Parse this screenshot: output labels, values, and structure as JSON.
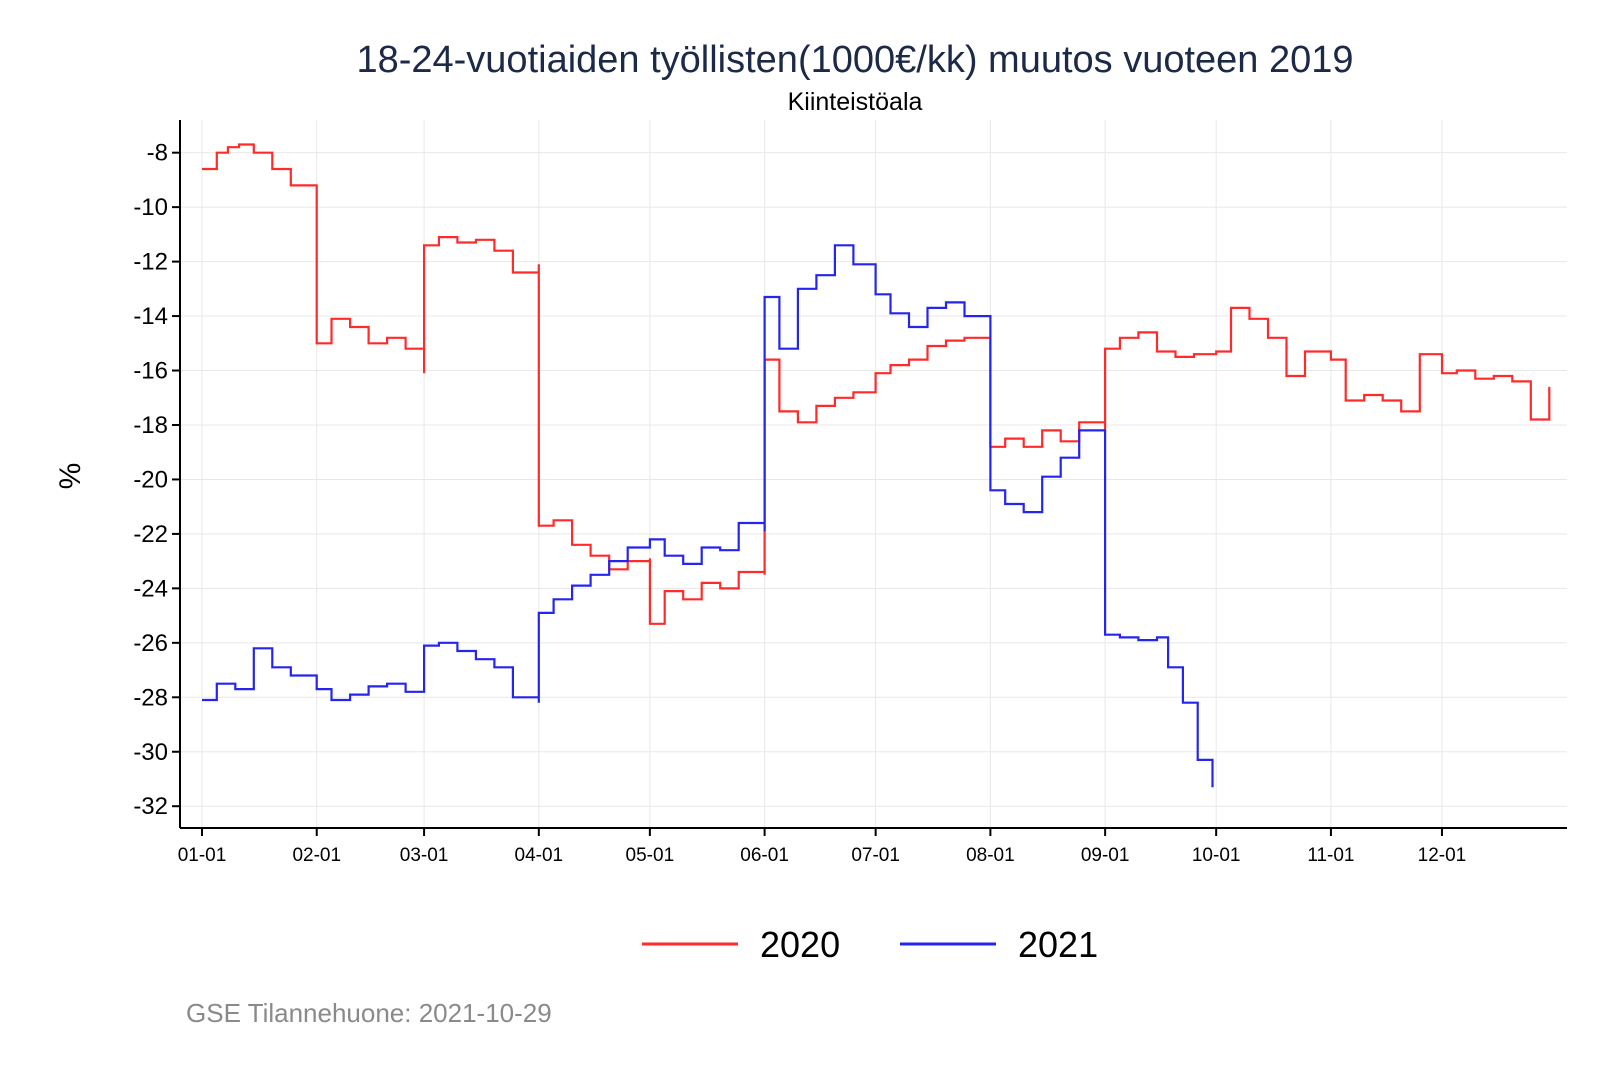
{
  "chart_data": {
    "type": "line",
    "title": "18-24-vuotiaiden työllisten(1000€/kk) muutos vuoteen 2019",
    "subtitle": "Kiinteistöala",
    "ylabel": "%",
    "xlabel": "",
    "ylim": [
      -32.8,
      -6.8
    ],
    "yticks": [
      -8,
      -10,
      -12,
      -14,
      -16,
      -18,
      -20,
      -22,
      -24,
      -26,
      -28,
      -30,
      -32
    ],
    "xticks": [
      "01-01",
      "02-01",
      "03-01",
      "04-01",
      "05-01",
      "06-01",
      "07-01",
      "08-01",
      "09-01",
      "10-01",
      "11-01",
      "12-01"
    ],
    "grid": true,
    "legend_position": "bottom",
    "source_note": "GSE Tilannehuone: 2021-10-29",
    "series": [
      {
        "name": "2020",
        "color": "#ff2a2a",
        "x": [
          "01-01",
          "01-05",
          "01-08",
          "01-11",
          "01-15",
          "01-20",
          "01-25",
          "02-01",
          "02-01",
          "02-05",
          "02-10",
          "02-15",
          "02-20",
          "02-25",
          "03-01",
          "03-01",
          "03-05",
          "03-10",
          "03-15",
          "03-20",
          "03-25",
          "04-01",
          "04-01",
          "04-05",
          "04-10",
          "04-15",
          "04-20",
          "04-25",
          "05-01",
          "05-01",
          "05-05",
          "05-10",
          "05-15",
          "05-20",
          "05-25",
          "06-01",
          "06-01",
          "06-05",
          "06-10",
          "06-15",
          "06-20",
          "06-25",
          "07-01",
          "07-05",
          "07-10",
          "07-15",
          "07-20",
          "07-25",
          "08-01",
          "08-01",
          "08-05",
          "08-10",
          "08-15",
          "08-20",
          "08-25",
          "09-01",
          "09-01",
          "09-05",
          "09-10",
          "09-15",
          "09-20",
          "09-25",
          "10-01",
          "10-05",
          "10-10",
          "10-15",
          "10-20",
          "10-25",
          "11-01",
          "11-05",
          "11-10",
          "11-15",
          "11-20",
          "11-25",
          "12-01",
          "12-05",
          "12-10",
          "12-15",
          "12-20",
          "12-25",
          "12-30"
        ],
        "values": [
          -8.6,
          -8.0,
          -7.8,
          -7.7,
          -8.0,
          -8.6,
          -9.2,
          -9.4,
          -15.0,
          -14.1,
          -14.4,
          -15.0,
          -14.8,
          -15.2,
          -16.1,
          -11.4,
          -11.1,
          -11.3,
          -11.2,
          -11.6,
          -12.4,
          -12.1,
          -21.7,
          -21.5,
          -22.4,
          -22.8,
          -23.3,
          -23.0,
          -22.9,
          -25.3,
          -24.1,
          -24.4,
          -23.8,
          -24.0,
          -23.4,
          -23.5,
          -15.6,
          -17.5,
          -17.9,
          -17.3,
          -17.0,
          -16.8,
          -16.1,
          -15.8,
          -15.6,
          -15.1,
          -14.9,
          -14.8,
          -14.8,
          -18.8,
          -18.5,
          -18.8,
          -18.2,
          -18.6,
          -17.9,
          -18.2,
          -15.2,
          -14.8,
          -14.6,
          -15.3,
          -15.5,
          -15.4,
          -15.3,
          -13.7,
          -14.1,
          -14.8,
          -16.2,
          -15.3,
          -15.6,
          -17.1,
          -16.9,
          -17.1,
          -17.5,
          -15.4,
          -16.1,
          -16.0,
          -16.3,
          -16.2,
          -16.4,
          -17.8,
          -16.6
        ]
      },
      {
        "name": "2021",
        "color": "#2525f0",
        "x": [
          "01-01",
          "01-05",
          "01-10",
          "01-15",
          "01-20",
          "01-25",
          "02-01",
          "02-05",
          "02-10",
          "02-15",
          "02-20",
          "02-25",
          "03-01",
          "03-01",
          "03-05",
          "03-10",
          "03-15",
          "03-20",
          "03-25",
          "04-01",
          "04-01",
          "04-05",
          "04-10",
          "04-15",
          "04-20",
          "04-25",
          "05-01",
          "05-05",
          "05-10",
          "05-15",
          "05-20",
          "05-25",
          "06-01",
          "06-01",
          "06-05",
          "06-10",
          "06-15",
          "06-20",
          "06-25",
          "07-01",
          "07-05",
          "07-10",
          "07-15",
          "07-20",
          "07-25",
          "08-01",
          "08-01",
          "08-05",
          "08-10",
          "08-15",
          "08-20",
          "08-25",
          "09-01",
          "09-01",
          "09-05",
          "09-10",
          "09-15",
          "09-18",
          "09-22",
          "09-26",
          "09-30"
        ],
        "values": [
          -28.1,
          -27.5,
          -27.7,
          -26.2,
          -26.9,
          -27.2,
          -27.7,
          -28.1,
          -27.9,
          -27.6,
          -27.5,
          -27.8,
          -27.8,
          -26.1,
          -26.0,
          -26.3,
          -26.6,
          -26.9,
          -28.0,
          -28.2,
          -24.9,
          -24.4,
          -23.9,
          -23.5,
          -23.0,
          -22.5,
          -22.2,
          -22.8,
          -23.1,
          -22.5,
          -22.6,
          -21.6,
          -21.9,
          -13.3,
          -15.2,
          -13.0,
          -12.5,
          -11.4,
          -12.1,
          -13.2,
          -13.9,
          -14.4,
          -13.7,
          -13.5,
          -14.0,
          -14.9,
          -20.4,
          -20.9,
          -21.2,
          -19.9,
          -19.2,
          -18.2,
          -18.2,
          -25.7,
          -25.8,
          -25.9,
          -25.8,
          -26.9,
          -28.2,
          -30.3,
          -31.3
        ]
      }
    ]
  }
}
